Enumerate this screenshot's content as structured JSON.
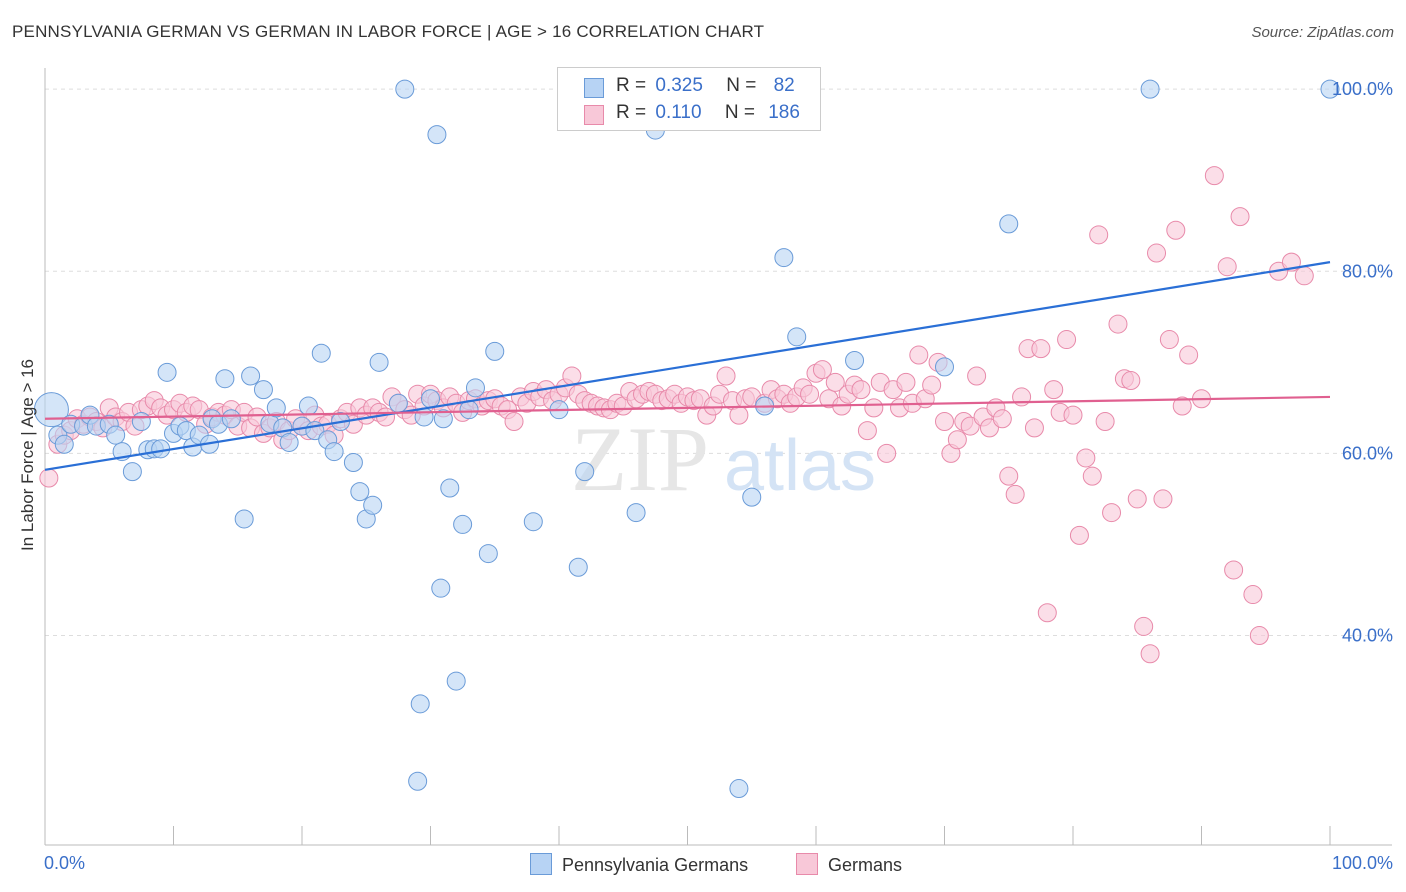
{
  "title": "PENNSYLVANIA GERMAN VS GERMAN IN LABOR FORCE | AGE > 16 CORRELATION CHART",
  "source": "Source: ZipAtlas.com",
  "watermark": {
    "zip": "ZIP",
    "atlas": "atlas"
  },
  "legend_top": {
    "r_label": "R =",
    "n_label": "N =",
    "rows": [
      {
        "r": "0.325",
        "n": "82"
      },
      {
        "r": "0.110",
        "n": "186"
      }
    ]
  },
  "legend_bottom": [
    "Pennsylvania Germans",
    "Germans"
  ],
  "colors": {
    "blue_fill": "#b7d3f4",
    "blue_stroke": "#6a9bd8",
    "blue_line": "#2a6fd6",
    "pink_fill": "#f8c8d8",
    "pink_stroke": "#e88aaa",
    "pink_line": "#e06090",
    "axis_label": "#3a6fc9",
    "grid": "#dddddd"
  },
  "chart_data": {
    "type": "scatter",
    "title": "PENNSYLVANIA GERMAN VS GERMAN IN LABOR FORCE | AGE > 16 CORRELATION CHART",
    "xlabel": "",
    "ylabel": "In Labor Force | Age > 16",
    "xlim": [
      0,
      100
    ],
    "ylim": [
      17,
      101
    ],
    "x_tick_labels": [
      "0.0%",
      "100.0%"
    ],
    "y_ticks": [
      40,
      60,
      80,
      100
    ],
    "y_tick_labels": [
      "40.0%",
      "60.0%",
      "80.0%",
      "100.0%"
    ],
    "grid": true,
    "legend_placement": "top-center",
    "series": [
      {
        "name": "Pennsylvania Germans",
        "r": 0.325,
        "n": 82,
        "trend": {
          "x": [
            0,
            100
          ],
          "y": [
            58.2,
            81.0
          ]
        },
        "points": [
          [
            0.5,
            64.8
          ],
          [
            1,
            62.0
          ],
          [
            1.5,
            61.0
          ],
          [
            2,
            63.2
          ],
          [
            3,
            63.0
          ],
          [
            3.5,
            64.2
          ],
          [
            4,
            63.0
          ],
          [
            5,
            63.2
          ],
          [
            5.5,
            62.0
          ],
          [
            6,
            60.2
          ],
          [
            6.8,
            58.0
          ],
          [
            7.5,
            63.5
          ],
          [
            8,
            60.4
          ],
          [
            8.5,
            60.5
          ],
          [
            9,
            60.5
          ],
          [
            9.5,
            68.9
          ],
          [
            10,
            62.2
          ],
          [
            10.5,
            63.0
          ],
          [
            11,
            62.5
          ],
          [
            11.5,
            60.7
          ],
          [
            12,
            62.0
          ],
          [
            12.8,
            61.0
          ],
          [
            13,
            63.8
          ],
          [
            13.5,
            63.2
          ],
          [
            14,
            68.2
          ],
          [
            14.5,
            63.8
          ],
          [
            15.5,
            52.8
          ],
          [
            16,
            68.5
          ],
          [
            17,
            67.0
          ],
          [
            17.5,
            63.3
          ],
          [
            18,
            65.0
          ],
          [
            18.5,
            62.8
          ],
          [
            19,
            61.2
          ],
          [
            20,
            63.0
          ],
          [
            20.5,
            65.2
          ],
          [
            21,
            62.5
          ],
          [
            21.5,
            71.0
          ],
          [
            22,
            61.5
          ],
          [
            22.5,
            60.2
          ],
          [
            23,
            63.5
          ],
          [
            24,
            59.0
          ],
          [
            24.5,
            55.8
          ],
          [
            25,
            52.8
          ],
          [
            25.5,
            54.3
          ],
          [
            26,
            70.0
          ],
          [
            27.5,
            65.5
          ],
          [
            28,
            100.0
          ],
          [
            29,
            24.0
          ],
          [
            29.2,
            32.5
          ],
          [
            29.5,
            64.0
          ],
          [
            30,
            66.0
          ],
          [
            30.5,
            95.0
          ],
          [
            30.8,
            45.2
          ],
          [
            31,
            63.8
          ],
          [
            31.5,
            56.2
          ],
          [
            32,
            35.0
          ],
          [
            32.5,
            52.2
          ],
          [
            33,
            64.8
          ],
          [
            33.5,
            67.2
          ],
          [
            34.5,
            49.0
          ],
          [
            35,
            71.2
          ],
          [
            38,
            52.5
          ],
          [
            40,
            64.8
          ],
          [
            41.5,
            47.5
          ],
          [
            42,
            58.0
          ],
          [
            43,
            100.0
          ],
          [
            46,
            53.5
          ],
          [
            47.5,
            95.5
          ],
          [
            54,
            23.2
          ],
          [
            55,
            55.2
          ],
          [
            56,
            65.2
          ],
          [
            57.5,
            81.5
          ],
          [
            58.5,
            72.8
          ],
          [
            63,
            70.2
          ],
          [
            70,
            69.5
          ],
          [
            75,
            85.2
          ],
          [
            86,
            100.0
          ],
          [
            100,
            100.0
          ]
        ]
      },
      {
        "name": "Germans",
        "r": 0.11,
        "n": 186,
        "trend": {
          "x": [
            0,
            100
          ],
          "y": [
            63.8,
            66.2
          ]
        },
        "points": [
          [
            0.3,
            57.3
          ],
          [
            1,
            61.0
          ],
          [
            1.5,
            62.0
          ],
          [
            2,
            62.5
          ],
          [
            2.5,
            63.8
          ],
          [
            3,
            63.2
          ],
          [
            3.5,
            64.0
          ],
          [
            4,
            63.5
          ],
          [
            4.5,
            62.8
          ],
          [
            5,
            65.0
          ],
          [
            5.5,
            64.0
          ],
          [
            6,
            63.5
          ],
          [
            6.5,
            64.5
          ],
          [
            7,
            63.0
          ],
          [
            7.5,
            64.8
          ],
          [
            8,
            65.2
          ],
          [
            8.5,
            65.8
          ],
          [
            9,
            65.0
          ],
          [
            9.5,
            64.2
          ],
          [
            10,
            64.8
          ],
          [
            10.5,
            65.5
          ],
          [
            11,
            64.5
          ],
          [
            11.5,
            65.2
          ],
          [
            12,
            64.8
          ],
          [
            12.5,
            63.2
          ],
          [
            13,
            64.0
          ],
          [
            13.5,
            64.5
          ],
          [
            14,
            64.2
          ],
          [
            14.5,
            64.8
          ],
          [
            15,
            63.0
          ],
          [
            15.5,
            64.5
          ],
          [
            16,
            62.8
          ],
          [
            16.5,
            64.0
          ],
          [
            17,
            62.2
          ],
          [
            17.5,
            62.8
          ],
          [
            18,
            63.5
          ],
          [
            18.5,
            61.5
          ],
          [
            19,
            62.5
          ],
          [
            19.5,
            63.8
          ],
          [
            20,
            63.0
          ],
          [
            20.5,
            62.5
          ],
          [
            21,
            64.2
          ],
          [
            21.5,
            63.0
          ],
          [
            22,
            63.2
          ],
          [
            22.5,
            62.0
          ],
          [
            23,
            63.8
          ],
          [
            23.5,
            64.5
          ],
          [
            24,
            63.2
          ],
          [
            24.5,
            65.0
          ],
          [
            25,
            64.2
          ],
          [
            25.5,
            65.0
          ],
          [
            26,
            64.5
          ],
          [
            26.5,
            64.0
          ],
          [
            27,
            66.2
          ],
          [
            27.5,
            65.5
          ],
          [
            28,
            64.8
          ],
          [
            28.5,
            64.2
          ],
          [
            29,
            66.5
          ],
          [
            29.5,
            65.2
          ],
          [
            30,
            66.5
          ],
          [
            30.5,
            65.8
          ],
          [
            31,
            65.0
          ],
          [
            31.5,
            66.2
          ],
          [
            32,
            65.5
          ],
          [
            32.5,
            64.5
          ],
          [
            33,
            65.8
          ],
          [
            33.5,
            66.0
          ],
          [
            34,
            65.2
          ],
          [
            34.5,
            65.8
          ],
          [
            35,
            66.0
          ],
          [
            35.5,
            65.2
          ],
          [
            36,
            64.8
          ],
          [
            36.5,
            63.5
          ],
          [
            37,
            66.2
          ],
          [
            37.5,
            65.5
          ],
          [
            38,
            66.8
          ],
          [
            38.5,
            66.2
          ],
          [
            39,
            67.0
          ],
          [
            39.5,
            65.8
          ],
          [
            40,
            66.5
          ],
          [
            40.5,
            67.2
          ],
          [
            41,
            68.5
          ],
          [
            41.5,
            66.5
          ],
          [
            42,
            65.8
          ],
          [
            42.5,
            65.5
          ],
          [
            43,
            65.2
          ],
          [
            43.5,
            65.0
          ],
          [
            44,
            64.8
          ],
          [
            44.5,
            65.5
          ],
          [
            45,
            65.2
          ],
          [
            45.5,
            66.8
          ],
          [
            46,
            66.0
          ],
          [
            46.5,
            66.5
          ],
          [
            47,
            66.8
          ],
          [
            47.5,
            66.5
          ],
          [
            48,
            65.8
          ],
          [
            48.5,
            66.0
          ],
          [
            49,
            66.5
          ],
          [
            49.5,
            65.5
          ],
          [
            50,
            66.2
          ],
          [
            50.5,
            65.8
          ],
          [
            51,
            66.0
          ],
          [
            51.5,
            64.2
          ],
          [
            52,
            65.2
          ],
          [
            52.5,
            66.5
          ],
          [
            53,
            68.5
          ],
          [
            53.5,
            65.8
          ],
          [
            54,
            64.2
          ],
          [
            54.5,
            66.0
          ],
          [
            55,
            66.2
          ],
          [
            56,
            65.5
          ],
          [
            56.5,
            67.0
          ],
          [
            57,
            66.0
          ],
          [
            57.5,
            66.5
          ],
          [
            58,
            65.5
          ],
          [
            58.5,
            66.2
          ],
          [
            59,
            67.2
          ],
          [
            59.5,
            66.5
          ],
          [
            60,
            68.8
          ],
          [
            60.5,
            69.2
          ],
          [
            61,
            66.0
          ],
          [
            61.5,
            67.8
          ],
          [
            62,
            65.2
          ],
          [
            62.5,
            66.5
          ],
          [
            63,
            67.5
          ],
          [
            63.5,
            67.0
          ],
          [
            64,
            62.5
          ],
          [
            64.5,
            65.0
          ],
          [
            65,
            67.8
          ],
          [
            65.5,
            60.0
          ],
          [
            66,
            67.0
          ],
          [
            66.5,
            65.0
          ],
          [
            67,
            67.8
          ],
          [
            67.5,
            65.5
          ],
          [
            68,
            70.8
          ],
          [
            68.5,
            66.0
          ],
          [
            69,
            67.5
          ],
          [
            69.5,
            70.0
          ],
          [
            70,
            63.5
          ],
          [
            70.5,
            60.0
          ],
          [
            71,
            61.5
          ],
          [
            71.5,
            63.5
          ],
          [
            72,
            63.0
          ],
          [
            72.5,
            68.5
          ],
          [
            73,
            64.0
          ],
          [
            73.5,
            62.8
          ],
          [
            74,
            65.0
          ],
          [
            74.5,
            63.8
          ],
          [
            75,
            57.5
          ],
          [
            75.5,
            55.5
          ],
          [
            76,
            66.2
          ],
          [
            76.5,
            71.5
          ],
          [
            77,
            62.8
          ],
          [
            77.5,
            71.5
          ],
          [
            78,
            42.5
          ],
          [
            78.5,
            67.0
          ],
          [
            79,
            64.5
          ],
          [
            79.5,
            72.5
          ],
          [
            80,
            64.2
          ],
          [
            80.5,
            51.0
          ],
          [
            81,
            59.5
          ],
          [
            81.5,
            57.5
          ],
          [
            82,
            84.0
          ],
          [
            82.5,
            63.5
          ],
          [
            83,
            53.5
          ],
          [
            83.5,
            74.2
          ],
          [
            84,
            68.2
          ],
          [
            84.5,
            68.0
          ],
          [
            85,
            55.0
          ],
          [
            85.5,
            41.0
          ],
          [
            86,
            38.0
          ],
          [
            86.5,
            82.0
          ],
          [
            87,
            55.0
          ],
          [
            87.5,
            72.5
          ],
          [
            88,
            84.5
          ],
          [
            88.5,
            65.2
          ],
          [
            89,
            70.8
          ],
          [
            90,
            66.0
          ],
          [
            91,
            90.5
          ],
          [
            92,
            80.5
          ],
          [
            92.5,
            47.2
          ],
          [
            93,
            86.0
          ],
          [
            94,
            44.5
          ],
          [
            94.5,
            40.0
          ],
          [
            96,
            80.0
          ],
          [
            97,
            81.0
          ],
          [
            98,
            79.5
          ]
        ]
      }
    ]
  }
}
